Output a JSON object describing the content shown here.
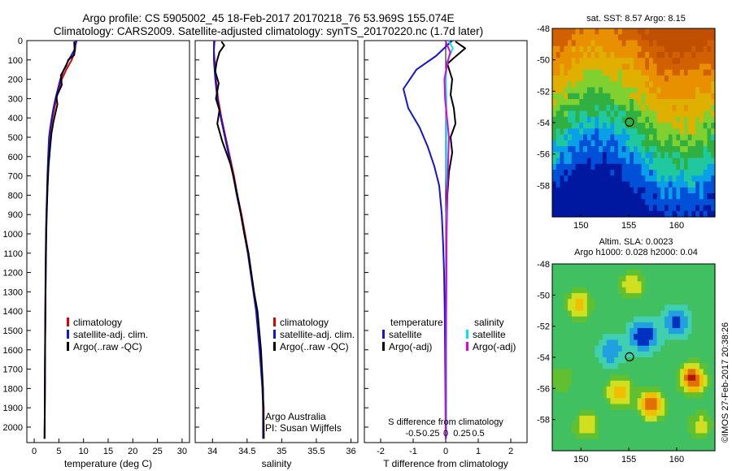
{
  "header": {
    "line1": "Argo profile: CS 5905002_45 18-Feb-2017 20170218_76 53.969S 155.074E",
    "line2": "Climatology: CARS2009. Satellite-adjusted climatology: synTS_20170220.nc (1.7d later)"
  },
  "colors": {
    "climatology": "#dd0000",
    "satellite": "#1414d6",
    "argo": "#000000",
    "satellite_salinity": "#00e5e5",
    "argo_salinity": "#e000e0"
  },
  "chart_data": [
    {
      "type": "line",
      "panel": "temperature",
      "xlabel": "temperature (deg C)",
      "xlim": [
        -1.5,
        31.5
      ],
      "ylim": [
        2080,
        0
      ],
      "y_reversed": true,
      "xticks": [
        0,
        5,
        10,
        15,
        20,
        25,
        30
      ],
      "xticklabels": [
        "0",
        "5",
        "10",
        "15",
        "20",
        "25",
        "30"
      ],
      "yticks": [
        0,
        100,
        200,
        300,
        400,
        500,
        600,
        700,
        800,
        900,
        1000,
        1100,
        1200,
        1300,
        1400,
        1500,
        1600,
        1700,
        1800,
        1900,
        2000
      ],
      "legend": [
        "climatology",
        "satellite-adj. clim.",
        "Argo(..raw -QC)"
      ],
      "series": [
        {
          "name": "climatology",
          "color": "#dd0000",
          "x": [
            8.4,
            8.3,
            7.6,
            6.5,
            5.6,
            5.0,
            4.5,
            4.1,
            3.7,
            3.35,
            3.1,
            2.9,
            2.75,
            2.62,
            2.5,
            2.4,
            2.33,
            2.27,
            2.22,
            2.18,
            2.12,
            2.1
          ],
          "y": [
            0,
            50,
            100,
            150,
            200,
            250,
            300,
            350,
            400,
            450,
            500,
            600,
            700,
            800,
            900,
            1000,
            1200,
            1400,
            1600,
            1800,
            2000,
            2060
          ]
        },
        {
          "name": "satellite-adj. clim.",
          "color": "#1414d6",
          "x": [
            8.6,
            8.1,
            7.0,
            6.0,
            5.3,
            4.8,
            4.3,
            3.9,
            3.55,
            3.25,
            3.0,
            2.82,
            2.68,
            2.57,
            2.46,
            2.37,
            2.3,
            2.25,
            2.2,
            2.16,
            2.11,
            2.09
          ],
          "y": [
            0,
            50,
            100,
            150,
            200,
            250,
            300,
            350,
            400,
            450,
            500,
            600,
            700,
            800,
            900,
            1000,
            1200,
            1400,
            1600,
            1800,
            2000,
            2060
          ]
        },
        {
          "name": "Argo(..raw -QC)",
          "color": "#000000",
          "x": [
            8.1,
            8.2,
            8.1,
            6.9,
            6.5,
            5.4,
            5.6,
            4.5,
            4.7,
            3.9,
            3.5,
            3.2,
            2.9,
            2.7,
            2.58,
            2.46,
            2.36,
            2.28,
            2.22,
            2.17,
            2.13,
            2.1
          ],
          "y": [
            5,
            50,
            75,
            100,
            130,
            180,
            230,
            290,
            330,
            420,
            480,
            560,
            650,
            760,
            860,
            980,
            1150,
            1350,
            1550,
            1750,
            1950,
            2060
          ]
        }
      ]
    },
    {
      "type": "line",
      "panel": "salinity",
      "xlabel": "salinity",
      "xlim": [
        33.75,
        36.1
      ],
      "ylim": [
        2080,
        0
      ],
      "y_reversed": true,
      "xticks": [
        34,
        34.5,
        35,
        35.5,
        36
      ],
      "xticklabels": [
        "34",
        "34.5",
        "35",
        "35.5",
        "36"
      ],
      "legend": [
        "climatology",
        "satellite-adj. clim.",
        "Argo(..raw -QC)"
      ],
      "annotations": [
        "Argo Australia",
        "PI: Susan Wijffels"
      ],
      "series": [
        {
          "name": "climatology",
          "color": "#dd0000",
          "x": [
            34.02,
            34.02,
            34.03,
            34.05,
            34.08,
            34.13,
            34.19,
            34.25,
            34.31,
            34.36,
            34.42,
            34.47,
            34.52,
            34.56,
            34.6,
            34.64,
            34.69,
            34.72,
            34.74,
            34.74,
            34.74
          ],
          "y": [
            0,
            50,
            100,
            200,
            300,
            400,
            500,
            600,
            700,
            800,
            900,
            1000,
            1100,
            1200,
            1300,
            1400,
            1600,
            1800,
            1900,
            2000,
            2060
          ]
        },
        {
          "name": "satellite-adj. clim.",
          "color": "#1414d6",
          "x": [
            34.03,
            34.02,
            34.02,
            34.04,
            34.07,
            34.12,
            34.18,
            34.24,
            34.3,
            34.35,
            34.41,
            34.46,
            34.51,
            34.55,
            34.59,
            34.63,
            34.68,
            34.72,
            34.73,
            34.73,
            34.73
          ],
          "y": [
            0,
            50,
            100,
            200,
            300,
            400,
            500,
            600,
            700,
            800,
            900,
            1000,
            1100,
            1200,
            1300,
            1400,
            1600,
            1800,
            1900,
            2000,
            2060
          ]
        },
        {
          "name": "Argo(..raw -QC)",
          "color": "#000000",
          "x": [
            34.13,
            34.17,
            34.1,
            34.06,
            34.04,
            34.09,
            34.05,
            34.1,
            34.07,
            34.14,
            34.2,
            34.26,
            34.3,
            34.36,
            34.41,
            34.46,
            34.52,
            34.56,
            34.6,
            34.65,
            34.7,
            34.73,
            34.74
          ],
          "y": [
            5,
            25,
            60,
            110,
            160,
            220,
            300,
            360,
            430,
            520,
            580,
            640,
            700,
            800,
            900,
            1000,
            1100,
            1200,
            1300,
            1400,
            1600,
            1800,
            2060
          ]
        }
      ]
    },
    {
      "type": "line",
      "panel": "difference",
      "xlabel": "T difference from climatology",
      "xlabel_top": "S difference from climatology",
      "xlim": [
        -2.5,
        2.5
      ],
      "ylim": [
        2080,
        0
      ],
      "y_reversed": true,
      "xticks": [
        -2,
        -1,
        0,
        1,
        2
      ],
      "xticklabels": [
        "-2",
        "-1",
        "0",
        "1",
        "2"
      ],
      "xticks_s": [
        -0.5,
        -0.25,
        0,
        0.25,
        0.5
      ],
      "xticklabels_s": [
        "-0.5",
        "-0.25",
        "0",
        "0.25",
        "0.5"
      ],
      "legend": [
        "temperature",
        "satellite",
        "Argo(-adj)",
        "salinity",
        "satellite",
        "Argo(-adj)"
      ],
      "series": [
        {
          "name": "temperature satellite",
          "color": "#1414d6",
          "x": [
            0.2,
            -0.3,
            -0.9,
            -1.3,
            -1.15,
            -0.8,
            -0.55,
            -0.35,
            -0.2,
            -0.12,
            -0.08,
            -0.05,
            -0.03,
            -0.02,
            -0.01,
            0
          ],
          "y": [
            0,
            80,
            150,
            250,
            350,
            450,
            550,
            650,
            750,
            900,
            1050,
            1200,
            1400,
            1600,
            1800,
            2060
          ]
        },
        {
          "name": "temperature Argo(-adj)",
          "color": "#000000",
          "x": [
            0.3,
            0.6,
            0.25,
            0.05,
            0.2,
            0.15,
            0.25,
            0.3,
            0.15,
            0.2,
            0.1,
            0.05,
            0.03,
            0.02,
            0.01,
            0,
            0
          ],
          "y": [
            5,
            40,
            90,
            120,
            200,
            280,
            350,
            430,
            500,
            580,
            680,
            800,
            950,
            1200,
            1500,
            1800,
            2060
          ]
        },
        {
          "name": "salinity satellite",
          "color": "#00e5e5",
          "x": [
            0.04,
            0.11,
            0.02,
            0,
            0.01,
            0.01,
            0.01,
            0.01,
            0.01,
            0.02,
            0.01,
            0.01,
            0.01,
            0.01,
            0.01,
            0.01
          ],
          "y": [
            0,
            40,
            110,
            200,
            300,
            400,
            500,
            600,
            700,
            800,
            900,
            1000,
            1200,
            1500,
            1800,
            2060
          ]
        },
        {
          "name": "salinity Argo(-adj)",
          "color": "#e000e0",
          "x": [
            0,
            0.07,
            0.03,
            -0.02,
            -0.01,
            0.02,
            0.05,
            0.04,
            0.03,
            0.02,
            0.02,
            0.01,
            0.01,
            0,
            0
          ],
          "y": [
            5,
            60,
            110,
            200,
            300,
            400,
            500,
            600,
            700,
            800,
            900,
            1000,
            1200,
            1600,
            2060
          ]
        }
      ]
    },
    {
      "type": "heatmap",
      "panel": "sst_map",
      "title": "sat. SST: 8.57 Argo: 8.15",
      "xlim": [
        147,
        164
      ],
      "ylim": [
        -60,
        -48
      ],
      "xticks": [
        150,
        155,
        160
      ],
      "yticks": [
        -48,
        -50,
        -52,
        -54,
        -56,
        -58
      ],
      "xticklabels": [
        "150",
        "155",
        "160"
      ],
      "yticklabels": [
        "-48",
        "-50",
        "-52",
        "-54",
        "-56",
        "-58"
      ],
      "marker": {
        "lon": 155.074,
        "lat": -53.969
      }
    },
    {
      "type": "heatmap",
      "panel": "sla_map",
      "title_lines": [
        "Altim. SLA: 0.0023",
        "Argo h1000: 0.028 h2000: 0.04"
      ],
      "xlim": [
        147,
        164
      ],
      "ylim": [
        -60,
        -48
      ],
      "xticks": [
        150,
        155,
        160
      ],
      "yticks": [
        -48,
        -50,
        -52,
        -54,
        -56,
        -58
      ],
      "xticklabels": [
        "150",
        "155",
        "160"
      ],
      "yticklabels": [
        "-48",
        "-50",
        "-52",
        "-54",
        "-56",
        "-58"
      ],
      "marker": {
        "lon": 155.074,
        "lat": -53.969
      }
    }
  ],
  "credit": "©IMOS 27-Feb-2017 20:38:26"
}
